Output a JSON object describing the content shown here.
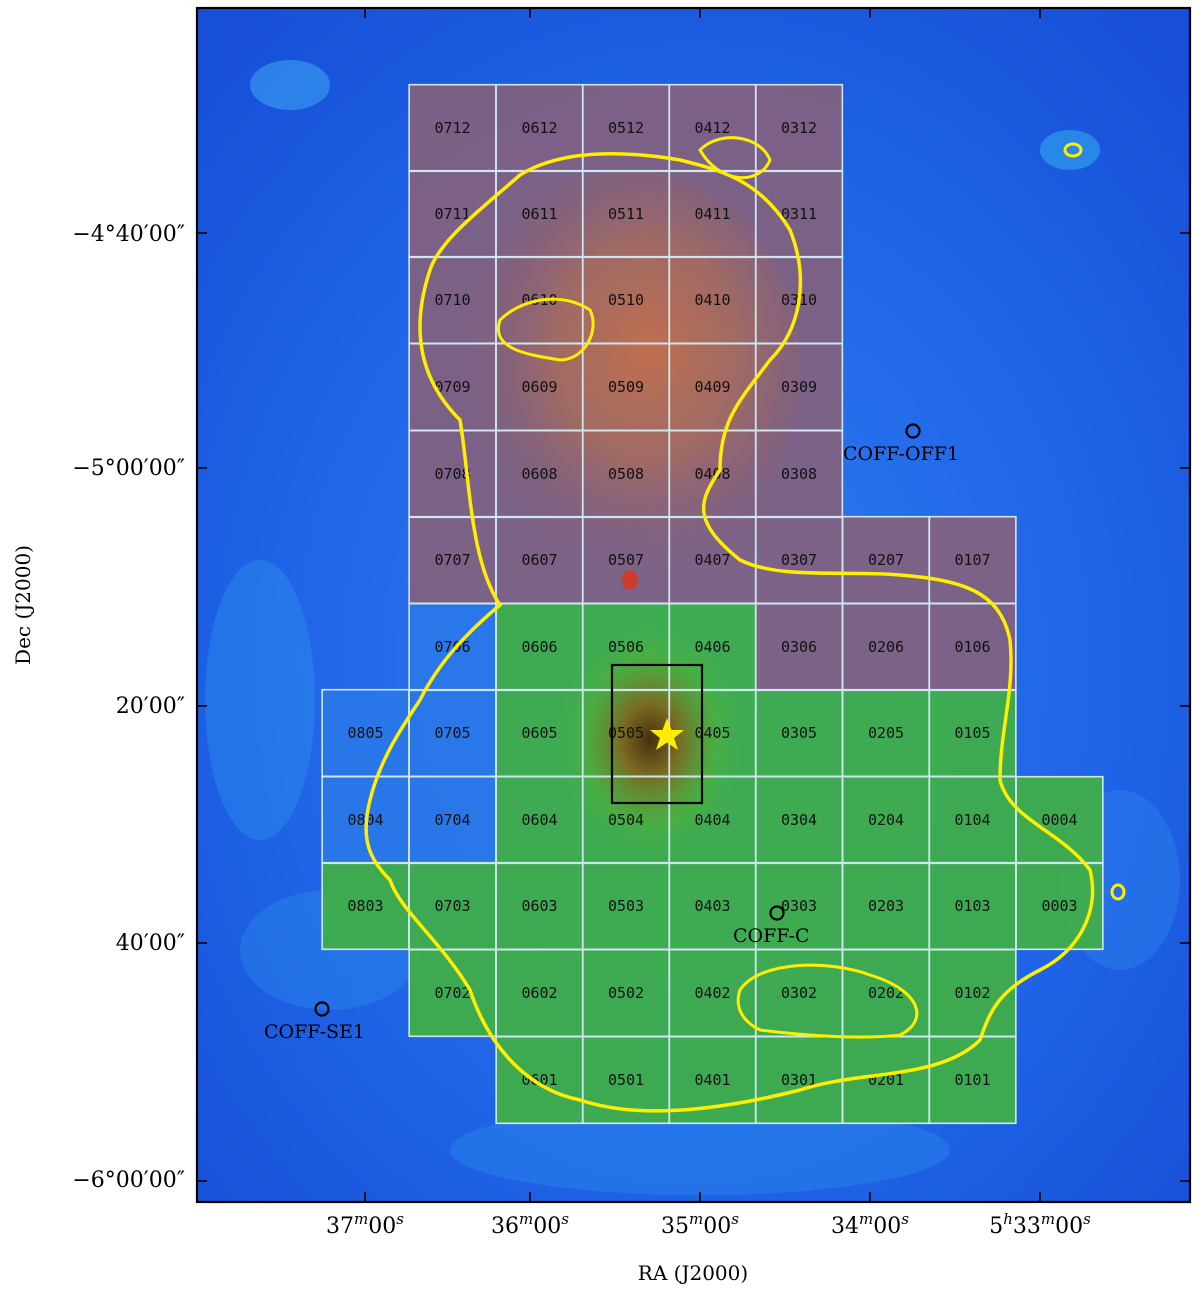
{
  "map": {
    "xlabel": "RA (J2000)",
    "ylabel": "Dec (J2000)",
    "x_ticks": [
      {
        "label": "37",
        "sup": "m",
        "rest": "00",
        "sup2": "s"
      },
      {
        "label": "36",
        "sup": "m",
        "rest": "00",
        "sup2": "s"
      },
      {
        "label": "35",
        "sup": "m",
        "rest": "00",
        "sup2": "s"
      },
      {
        "label": "34",
        "sup": "m",
        "rest": "00",
        "sup2": "s"
      },
      {
        "label": "5",
        "sup": "h",
        "rest": "33",
        "sup2": "m",
        "tail": "00",
        "sup3": "s"
      }
    ],
    "y_ticks": [
      "−4°40′00″",
      "−5°00′00″",
      "20′00″",
      "40′00″",
      "−6°00′00″"
    ],
    "tiles": {
      "purple": [
        "0712",
        "0612",
        "0512",
        "0412",
        "0312",
        "0711",
        "0611",
        "0511",
        "0411",
        "0311",
        "0710",
        "0610",
        "0510",
        "0410",
        "0310",
        "0709",
        "0609",
        "0509",
        "0409",
        "0309",
        "0708",
        "0608",
        "0508",
        "0408",
        "0308",
        "0707",
        "0607",
        "0507",
        "0407",
        "0307",
        "0207",
        "0107",
        "0306",
        "0206",
        "0106"
      ],
      "blue": [
        "0706",
        "0805",
        "0705",
        "0804",
        "0704"
      ],
      "green": [
        "0606",
        "0506",
        "0406",
        "0605",
        "0505",
        "0405",
        "0305",
        "0205",
        "0105",
        "0604",
        "0504",
        "0404",
        "0304",
        "0204",
        "0104",
        "0004",
        "0803",
        "0703",
        "0603",
        "0503",
        "0403",
        "0303",
        "0203",
        "0103",
        "0003",
        "0702",
        "0602",
        "0502",
        "0402",
        "0302",
        "0202",
        "0102",
        "0601",
        "0501",
        "0401",
        "0301",
        "0201",
        "0101"
      ]
    },
    "positions": [
      {
        "id": "coff-off1",
        "label": "COFF-OFF1"
      },
      {
        "id": "coff-c",
        "label": "COFF-C"
      },
      {
        "id": "coff-se1",
        "label": "COFF-SE1"
      }
    ],
    "colors": {
      "background": "#1f63e6",
      "contour": "#ffee00",
      "grid": "#cfe6ee",
      "frame": "#000000",
      "star": "#ffee00"
    }
  }
}
